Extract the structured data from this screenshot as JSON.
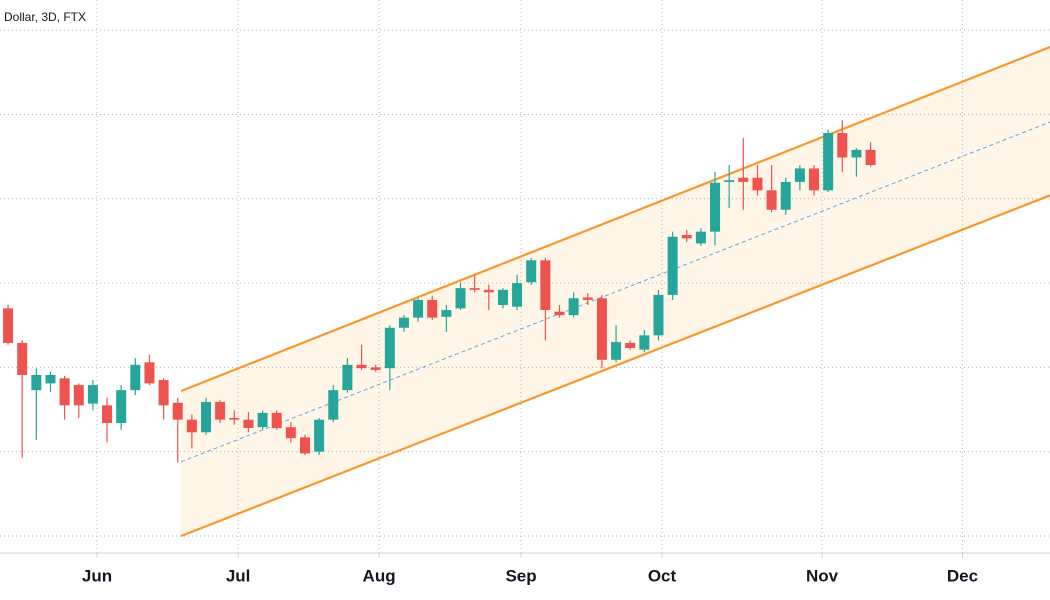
{
  "chart_data": {
    "type": "candlestick",
    "title": "Dollar, 3D, FTX",
    "categories": [
      null,
      null,
      null,
      null,
      null,
      null,
      null,
      null,
      null,
      null,
      null,
      null,
      null,
      null,
      null,
      null,
      null,
      null,
      null,
      null,
      null,
      null,
      null,
      null,
      null,
      null,
      null,
      null,
      null,
      null,
      null,
      null,
      null,
      null,
      null,
      null,
      null,
      null,
      null,
      null,
      null,
      null,
      null,
      null,
      null,
      null,
      null,
      null,
      null,
      null,
      null,
      null,
      null,
      null,
      null,
      null,
      null,
      null,
      null,
      null,
      null,
      null
    ],
    "open": [
      47000,
      42900,
      37300,
      38100,
      38700,
      37900,
      35700,
      35500,
      33400,
      37300,
      40600,
      38500,
      35800,
      33800,
      32300,
      35900,
      34000,
      33800,
      32900,
      34600,
      32900,
      31700,
      30000,
      33800,
      37300,
      40300,
      40000,
      39900,
      44700,
      45900,
      48000,
      46000,
      47000,
      49400,
      49200,
      47400,
      47200,
      50100,
      52700,
      46600,
      46200,
      48300,
      48200,
      40900,
      42900,
      42100,
      43800,
      48600,
      55700,
      54700,
      56100,
      62000,
      62500,
      62500,
      61000,
      58700,
      62000,
      63600,
      61000,
      67800,
      64900,
      65800
    ],
    "high": [
      47400,
      43200,
      39900,
      39500,
      39000,
      38100,
      38500,
      36400,
      37900,
      41100,
      41500,
      38700,
      36400,
      34400,
      36400,
      36100,
      34900,
      34700,
      34900,
      34900,
      33500,
      32000,
      34000,
      37900,
      41100,
      42700,
      40300,
      45000,
      46200,
      48200,
      48500,
      47400,
      50100,
      51000,
      49800,
      49400,
      51000,
      53000,
      53000,
      47400,
      48900,
      48800,
      48600,
      45000,
      43200,
      44400,
      49200,
      56100,
      56300,
      56500,
      63200,
      64000,
      67200,
      64000,
      64000,
      62500,
      64000,
      64000,
      68200,
      69300,
      66000,
      66700
    ],
    "low": [
      42700,
      29300,
      31400,
      37100,
      33800,
      34000,
      34900,
      31100,
      32600,
      36700,
      37900,
      33800,
      28700,
      30400,
      32000,
      33400,
      33200,
      32300,
      32600,
      32600,
      31100,
      29600,
      29600,
      33500,
      37000,
      39700,
      39500,
      37300,
      44200,
      45400,
      45600,
      44200,
      46800,
      48900,
      46800,
      47000,
      46800,
      49800,
      43200,
      45900,
      45900,
      47400,
      39900,
      40600,
      42100,
      41800,
      43200,
      48000,
      54900,
      54400,
      54500,
      58900,
      58700,
      60400,
      58400,
      58100,
      61000,
      60400,
      60800,
      63200,
      62600,
      63800
    ],
    "close": [
      42900,
      39100,
      39100,
      39100,
      35500,
      35500,
      37900,
      33400,
      37300,
      40300,
      38100,
      35500,
      33800,
      32300,
      35900,
      33800,
      33800,
      32800,
      34600,
      32800,
      31600,
      29800,
      33800,
      37300,
      40300,
      39900,
      39700,
      44700,
      45900,
      48000,
      45900,
      46800,
      49400,
      49200,
      48900,
      49200,
      50000,
      52700,
      46800,
      46200,
      48200,
      48000,
      40900,
      43000,
      42300,
      43800,
      48600,
      55500,
      55300,
      56100,
      61900,
      62200,
      62000,
      61000,
      58700,
      62000,
      63600,
      61000,
      67800,
      64900,
      65800,
      64000
    ],
    "up_color": "#26a69a",
    "down_color": "#ef5350",
    "xlim": [
      -0.57,
      73.69
    ],
    "xticks": [
      {
        "value": 6.29,
        "label": "Jun"
      },
      {
        "value": 16.27,
        "label": "Jul"
      },
      {
        "value": 26.24,
        "label": "Aug"
      },
      {
        "value": 36.28,
        "label": "Sep"
      },
      {
        "value": 46.25,
        "label": "Oct"
      },
      {
        "value": 57.57,
        "label": "Nov"
      },
      {
        "value": 67.5,
        "label": "Dec"
      }
    ],
    "ylim": [
      17980,
      83580
    ],
    "yticks": [
      20000,
      30000,
      40000,
      50000,
      60000,
      70000,
      80000
    ],
    "grid": true,
    "channel": {
      "x": [
        12.24,
        73.69
      ],
      "upper": [
        37200,
        78000
      ],
      "middle": [
        28800,
        69100
      ],
      "lower": [
        20000,
        60400
      ],
      "line_color": "#f7982e",
      "middle_color": "#5ea8ea",
      "fill": "rgba(255,152,0,0.09)"
    }
  }
}
